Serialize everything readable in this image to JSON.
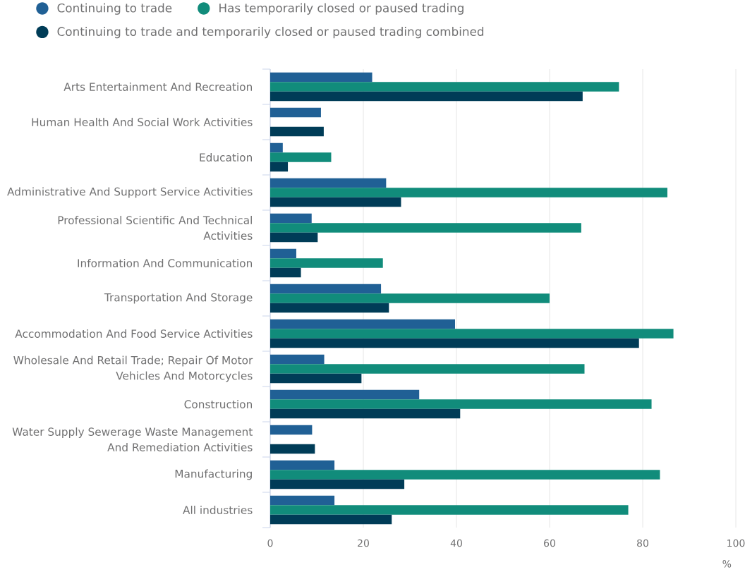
{
  "chart_data": {
    "type": "bar",
    "orientation": "horizontal",
    "categories": [
      "Arts Entertainment And Recreation",
      "Human Health And Social Work Activities",
      "Education",
      "Administrative And Support Service Activities",
      "Professional Scientific And Technical Activities",
      "Information And Communication",
      "Transportation And Storage",
      "Accommodation And Food Service Activities",
      "Wholesale And Retail Trade; Repair Of Motor Vehicles And Motorcycles",
      "Construction",
      "Water Supply Sewerage Waste Management And Remediation Activities",
      "Manufacturing",
      "All industries"
    ],
    "series": [
      {
        "name": "Continuing to trade",
        "color": "#206095",
        "values": [
          21.9,
          10.9,
          2.7,
          24.9,
          8.9,
          5.6,
          23.8,
          39.7,
          11.6,
          32.0,
          9.0,
          13.8,
          13.8
        ]
      },
      {
        "name": "Has temporarily closed or paused trading",
        "color": "#118c7b",
        "values": [
          74.9,
          null,
          13.1,
          85.3,
          66.8,
          24.2,
          60.0,
          86.6,
          67.5,
          81.9,
          null,
          83.7,
          76.9
        ]
      },
      {
        "name": "Continuing to trade and temporarily closed or paused trading combined",
        "color": "#003c57",
        "values": [
          67.1,
          11.5,
          3.8,
          28.1,
          10.2,
          6.6,
          25.5,
          79.2,
          19.6,
          40.8,
          9.6,
          28.8,
          26.1
        ]
      }
    ],
    "xlim": [
      0,
      100
    ],
    "xticks": [
      0,
      20,
      40,
      60,
      80,
      100
    ],
    "xlabel": "%",
    "grid": "x",
    "legend": "top left"
  }
}
